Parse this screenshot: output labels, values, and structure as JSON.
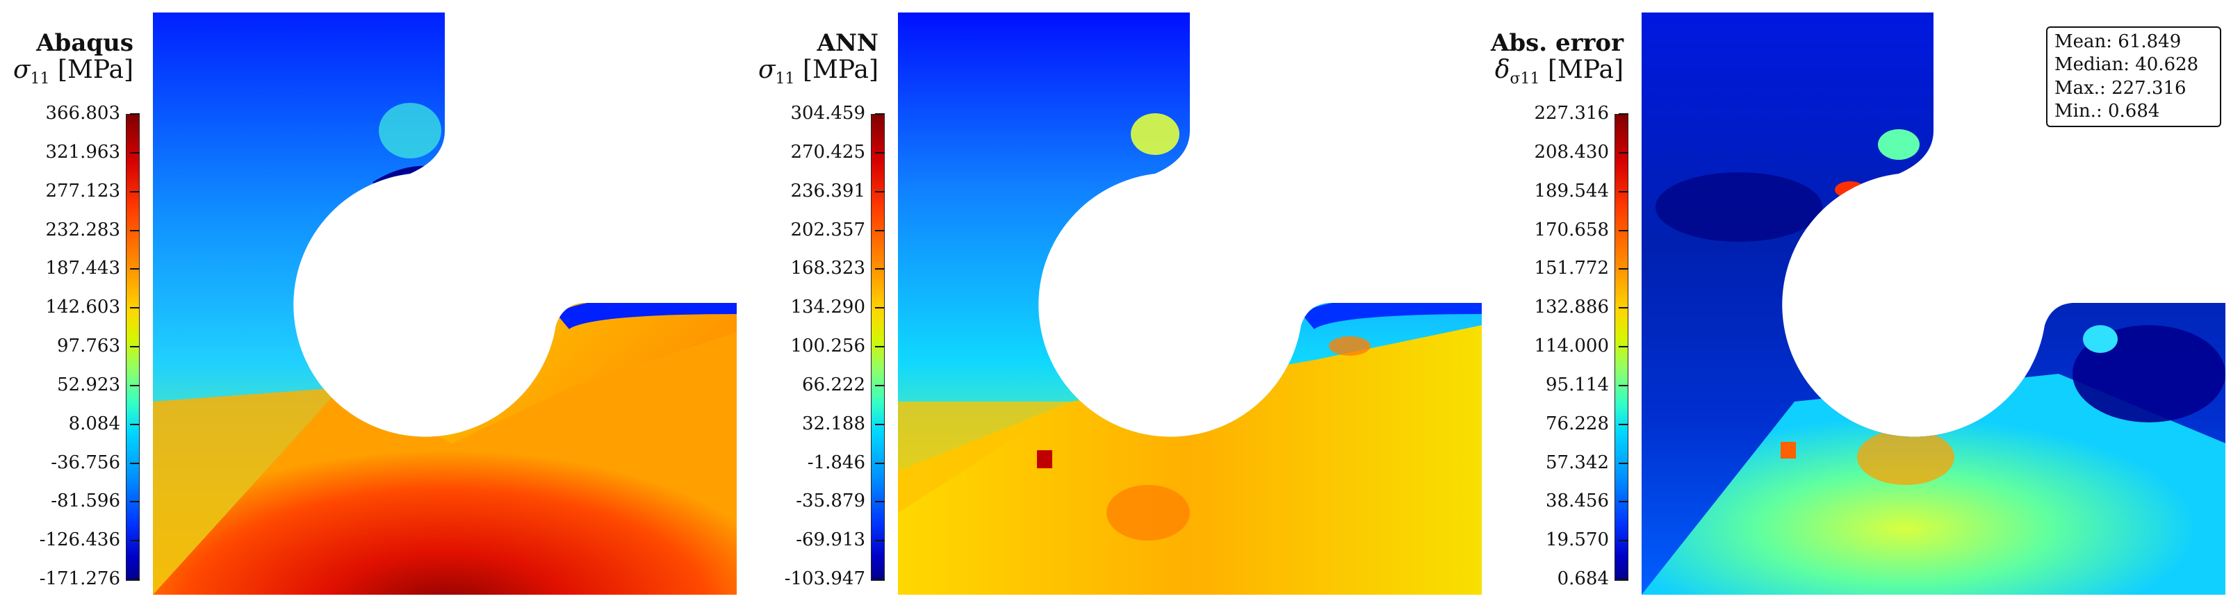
{
  "panels": [
    {
      "title": "Abaqus",
      "symbol": "σ",
      "subscript": "11",
      "unit": "[MPa]",
      "ticks": [
        "366.803",
        "321.963",
        "277.123",
        "232.283",
        "187.443",
        "142.603",
        "97.763",
        "52.923",
        "8.084",
        "-36.756",
        "-81.596",
        "-126.436",
        "-171.276"
      ]
    },
    {
      "title": "ANN",
      "symbol": "σ",
      "subscript": "11",
      "unit": "[MPa]",
      "ticks": [
        "304.459",
        "270.425",
        "236.391",
        "202.357",
        "168.323",
        "134.290",
        "100.256",
        "66.222",
        "32.188",
        "-1.846",
        "-35.879",
        "-69.913",
        "-103.947"
      ]
    },
    {
      "title": "Abs. error",
      "symbol": "δ",
      "subscript": "σ11",
      "unit": "[MPa]",
      "ticks": [
        "227.316",
        "208.430",
        "189.544",
        "170.658",
        "151.772",
        "132.886",
        "114.000",
        "95.114",
        "76.228",
        "57.342",
        "38.456",
        "19.570",
        "0.684"
      ]
    }
  ],
  "stats": {
    "mean": "Mean: 61.849",
    "median": "Median: 40.628",
    "max": "Max.: 227.316",
    "min": "Min.: 0.684"
  },
  "colormap": "jet"
}
